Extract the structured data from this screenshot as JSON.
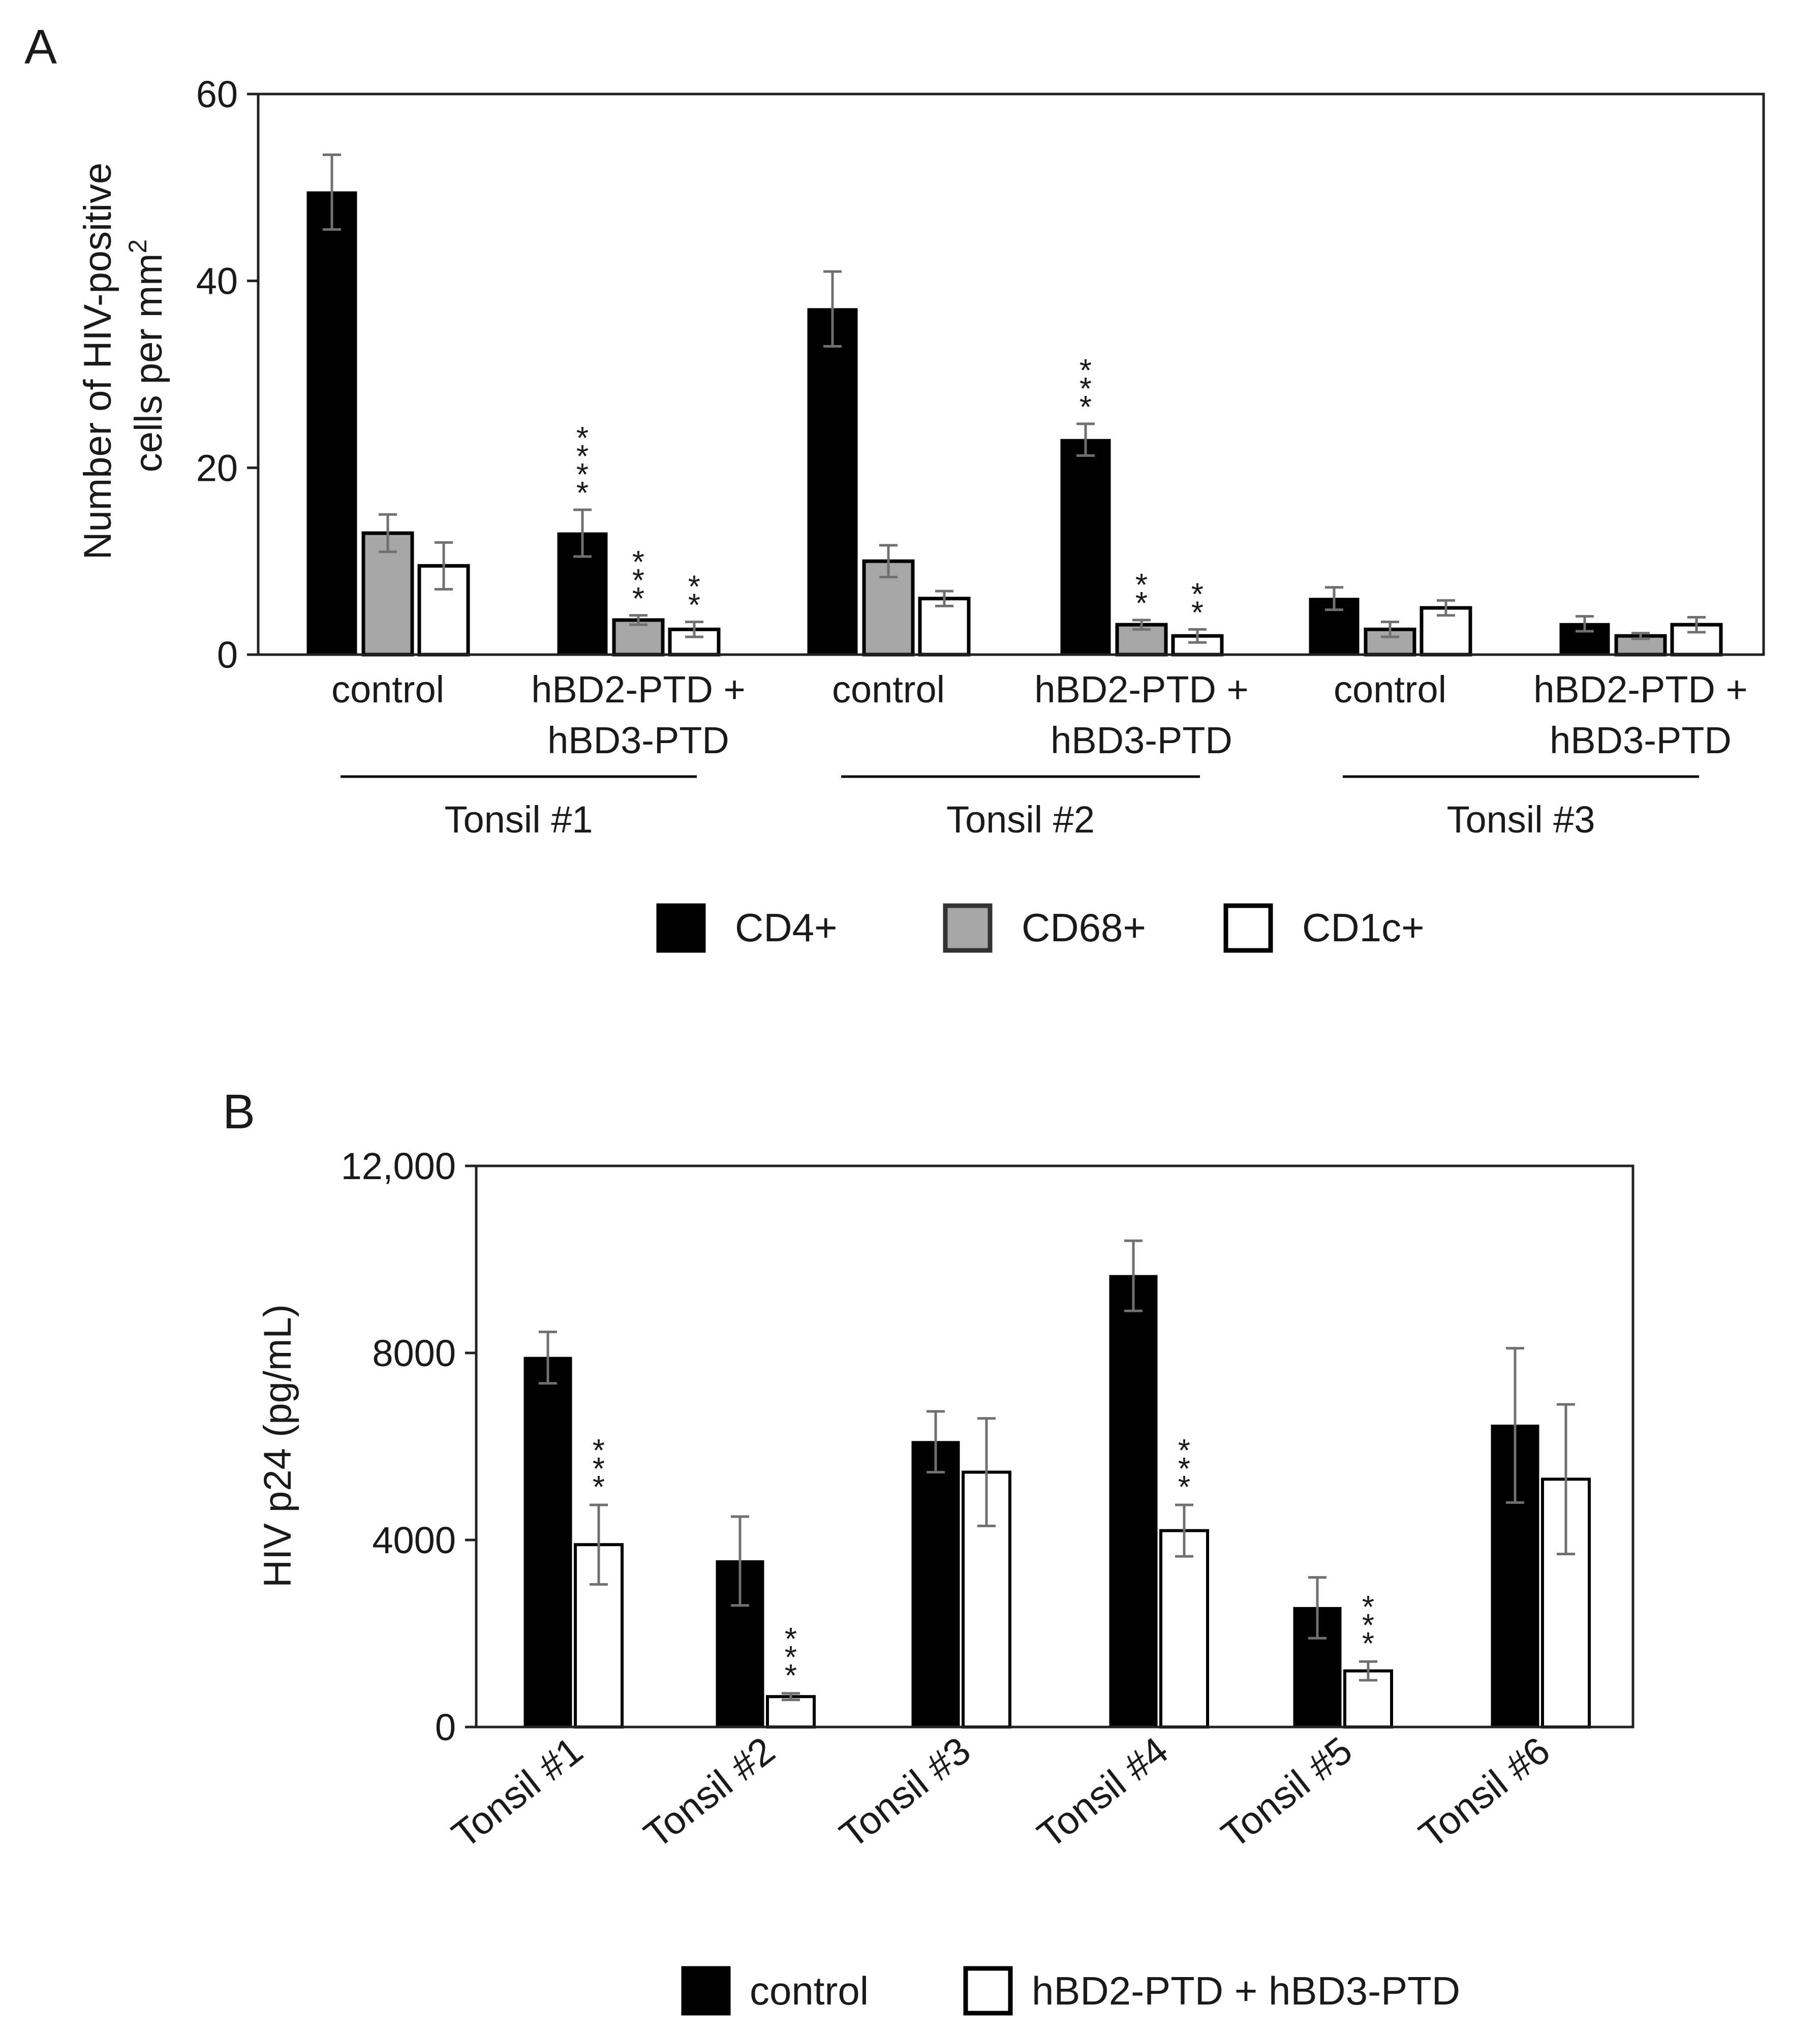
{
  "colors": {
    "CD4+": "#000000",
    "CD68+": "#a6a6a6",
    "CD1c+": "#ffffff",
    "control": "#000000",
    "hBD2-PTD + hBD3-PTD": "#ffffff",
    "error_bar": "#707070",
    "axis": "#222222"
  },
  "chart_data": [
    {
      "panel_label": "A",
      "type": "bar",
      "ylabel_line1": "Number of HIV-positive",
      "ylabel_line2": "cells per mm",
      "ylabel_superscript": "2",
      "ylim": [
        0,
        60
      ],
      "yticks": [
        "0",
        "20",
        "40",
        "60"
      ],
      "ytick_values": [
        0,
        20,
        40,
        60
      ],
      "groups": [
        {
          "label": "Tonsil #1",
          "conditions": [
            {
              "label_lines": [
                "control"
              ],
              "values": [
                49.5,
                13,
                9.5
              ],
              "errors": [
                4,
                2,
                2.5
              ],
              "stars": [
                "",
                "",
                ""
              ]
            },
            {
              "label_lines": [
                "hBD2-PTD +",
                "hBD3-PTD"
              ],
              "values": [
                13,
                3.7,
                2.7
              ],
              "errors": [
                2.5,
                0.5,
                0.8
              ],
              "stars": [
                "****",
                "***",
                "**"
              ]
            }
          ]
        },
        {
          "label": "Tonsil #2",
          "conditions": [
            {
              "label_lines": [
                "control"
              ],
              "values": [
                37,
                10,
                6
              ],
              "errors": [
                4,
                1.7,
                0.8
              ],
              "stars": [
                "",
                "",
                ""
              ]
            },
            {
              "label_lines": [
                "hBD2-PTD +",
                "hBD3-PTD"
              ],
              "values": [
                23,
                3.2,
                2
              ],
              "errors": [
                1.7,
                0.5,
                0.7
              ],
              "stars": [
                "***",
                "**",
                "**"
              ]
            }
          ]
        },
        {
          "label": "Tonsil #3",
          "conditions": [
            {
              "label_lines": [
                "control"
              ],
              "values": [
                6,
                2.7,
                5
              ],
              "errors": [
                1.2,
                0.8,
                0.8
              ],
              "stars": [
                "",
                "",
                ""
              ]
            },
            {
              "label_lines": [
                "hBD2-PTD +",
                "hBD3-PTD"
              ],
              "values": [
                3.3,
                2,
                3.2
              ],
              "errors": [
                0.8,
                0.3,
                0.8
              ],
              "stars": [
                "",
                "",
                ""
              ]
            }
          ]
        }
      ],
      "series": [
        {
          "name": "CD4+"
        },
        {
          "name": "CD68+"
        },
        {
          "name": "CD1c+"
        }
      ],
      "legend_placement": "bottom"
    },
    {
      "panel_label": "B",
      "type": "bar",
      "ylabel": "HIV p24 (pg/mL)",
      "ylim": [
        0,
        12000
      ],
      "yticks": [
        "0",
        "4000",
        "8000",
        "12,000"
      ],
      "ytick_values": [
        0,
        4000,
        8000,
        12000
      ],
      "categories": [
        "Tonsil #1",
        "Tonsil #2",
        "Tonsil #3",
        "Tonsil #4",
        "Tonsil #5",
        "Tonsil #6"
      ],
      "series": [
        {
          "name": "control",
          "values": [
            7900,
            3550,
            6100,
            9650,
            2550,
            6450
          ],
          "errors": [
            550,
            950,
            650,
            750,
            650,
            1650
          ]
        },
        {
          "name": "hBD2-PTD + hBD3-PTD",
          "values": [
            3900,
            650,
            5450,
            4200,
            1200,
            5300
          ],
          "errors": [
            850,
            70,
            1150,
            550,
            200,
            1600
          ]
        }
      ],
      "stars": [
        "***",
        "***",
        "",
        "***",
        "***",
        ""
      ],
      "legend_placement": "bottom"
    }
  ]
}
